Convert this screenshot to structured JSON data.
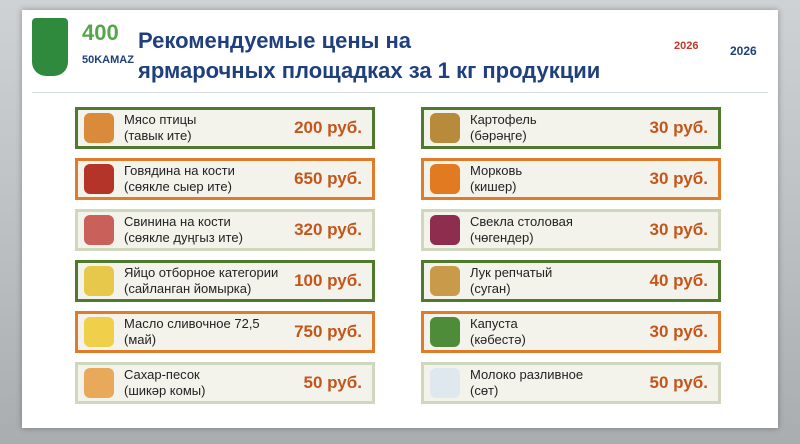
{
  "header": {
    "title_lines": [
      "Рекомендуемые цены на",
      "ярмарочных площадках за 1 кг продукции"
    ],
    "logo_texts": [
      "400",
      "50KAMAZ",
      "2026",
      "2026"
    ]
  },
  "columns": [
    {
      "items": [
        {
          "name": "Мясо птицы",
          "name_tt": "(тавык ите)",
          "price": "200 руб."
        },
        {
          "name": "Говядина на кости",
          "name_tt": "(сөякле сыер ите)",
          "price": "650 руб."
        },
        {
          "name": "Свинина на кости",
          "name_tt": "(сөякле дуңгыз ите)",
          "price": "320 руб."
        },
        {
          "name": "Яйцо отборное категории",
          "name_tt": "(сайланган йомырка)",
          "price": "100 руб."
        },
        {
          "name": "Масло сливочное 72,5",
          "name_tt": "(май)",
          "price": "750 руб."
        },
        {
          "name": "Сахар-песок",
          "name_tt": "(шикәр комы)",
          "price": "50 руб."
        }
      ]
    },
    {
      "items": [
        {
          "name": "Картофель",
          "name_tt": "(бәрәңге)",
          "price": "30 руб."
        },
        {
          "name": "Морковь",
          "name_tt": "(кишер)",
          "price": "30 руб."
        },
        {
          "name": "Свекла столовая",
          "name_tt": "(чөгендер)",
          "price": "30 руб."
        },
        {
          "name": "Лук репчатый",
          "name_tt": "(суган)",
          "price": "40 руб."
        },
        {
          "name": "Капуста",
          "name_tt": "(кәбестә)",
          "price": "30 руб."
        },
        {
          "name": "Молоко разливное",
          "name_tt": "(сөт)",
          "price": "50 руб."
        }
      ]
    }
  ]
}
